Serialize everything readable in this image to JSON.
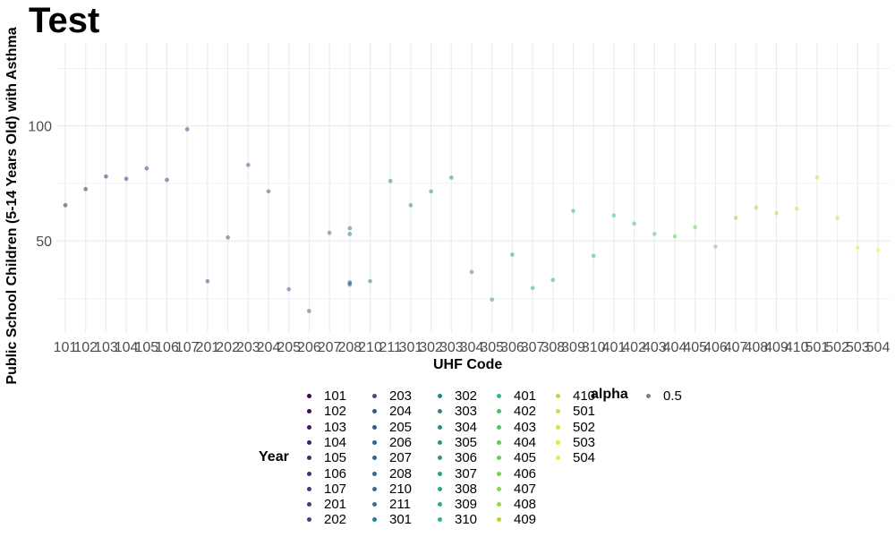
{
  "chart_data": {
    "type": "scatter",
    "title": "Test",
    "xlabel": "UHF Code",
    "ylabel": "Public School Children (5-14 Years Old) with Asthma",
    "categories": [
      "101",
      "102",
      "103",
      "104",
      "105",
      "106",
      "107",
      "201",
      "202",
      "203",
      "204",
      "205",
      "206",
      "207",
      "208",
      "210",
      "211",
      "301",
      "302",
      "303",
      "304",
      "305",
      "306",
      "307",
      "308",
      "309",
      "310",
      "401",
      "402",
      "403",
      "404",
      "405",
      "406",
      "407",
      "408",
      "409",
      "410",
      "501",
      "502",
      "503",
      "504"
    ],
    "points": [
      {
        "x": "101",
        "y": 65.5
      },
      {
        "x": "102",
        "y": 72.5
      },
      {
        "x": "103",
        "y": 78
      },
      {
        "x": "104",
        "y": 77
      },
      {
        "x": "105",
        "y": 81.5
      },
      {
        "x": "106",
        "y": 76.5
      },
      {
        "x": "107",
        "y": 98.5
      },
      {
        "x": "201",
        "y": 32.5
      },
      {
        "x": "202",
        "y": 51.5
      },
      {
        "x": "203",
        "y": 83
      },
      {
        "x": "204",
        "y": 71.5
      },
      {
        "x": "205",
        "y": 29
      },
      {
        "x": "206",
        "y": 19.5
      },
      {
        "x": "207",
        "y": 53.5
      },
      {
        "x": "208",
        "y": 55.5
      },
      {
        "x": "208",
        "y": 53
      },
      {
        "x": "208",
        "y": 32
      },
      {
        "x": "208",
        "y": 31.5
      },
      {
        "x": "208",
        "y": 31
      },
      {
        "x": "210",
        "y": 32.5
      },
      {
        "x": "211",
        "y": 76
      },
      {
        "x": "301",
        "y": 65.5
      },
      {
        "x": "302",
        "y": 71.5
      },
      {
        "x": "303",
        "y": 77.5
      },
      {
        "x": "304",
        "y": 36.5
      },
      {
        "x": "305",
        "y": 24.5
      },
      {
        "x": "306",
        "y": 44
      },
      {
        "x": "307",
        "y": 29.5
      },
      {
        "x": "308",
        "y": 33
      },
      {
        "x": "309",
        "y": 63
      },
      {
        "x": "310",
        "y": 43.5
      },
      {
        "x": "401",
        "y": 61
      },
      {
        "x": "402",
        "y": 57.5
      },
      {
        "x": "403",
        "y": 53
      },
      {
        "x": "404",
        "y": 52
      },
      {
        "x": "405",
        "y": 56
      },
      {
        "x": "406",
        "y": 47.5
      },
      {
        "x": "407",
        "y": 60
      },
      {
        "x": "408",
        "y": 64.5
      },
      {
        "x": "409",
        "y": 62
      },
      {
        "x": "410",
        "y": 64
      },
      {
        "x": "501",
        "y": 77.5
      },
      {
        "x": "502",
        "y": 60
      },
      {
        "x": "503",
        "y": 47
      },
      {
        "x": "504",
        "y": 46
      }
    ],
    "ylim": [
      10,
      136
    ],
    "y_ticks": [
      50,
      100
    ],
    "grid": true,
    "point_opacity": 0.5,
    "color_scale": "viridis",
    "legend_placement": "bottom",
    "legend_color": {
      "title": "Year",
      "items": [
        "101",
        "102",
        "103",
        "104",
        "105",
        "106",
        "107",
        "201",
        "202",
        "203",
        "204",
        "205",
        "206",
        "207",
        "208",
        "210",
        "211",
        "301",
        "302",
        "303",
        "304",
        "305",
        "306",
        "307",
        "308",
        "309",
        "310",
        "401",
        "402",
        "403",
        "404",
        "405",
        "406",
        "407",
        "408",
        "409",
        "410",
        "501",
        "502",
        "503",
        "504"
      ]
    },
    "legend_alpha": {
      "title": "alpha",
      "items": [
        "0.5"
      ]
    }
  }
}
